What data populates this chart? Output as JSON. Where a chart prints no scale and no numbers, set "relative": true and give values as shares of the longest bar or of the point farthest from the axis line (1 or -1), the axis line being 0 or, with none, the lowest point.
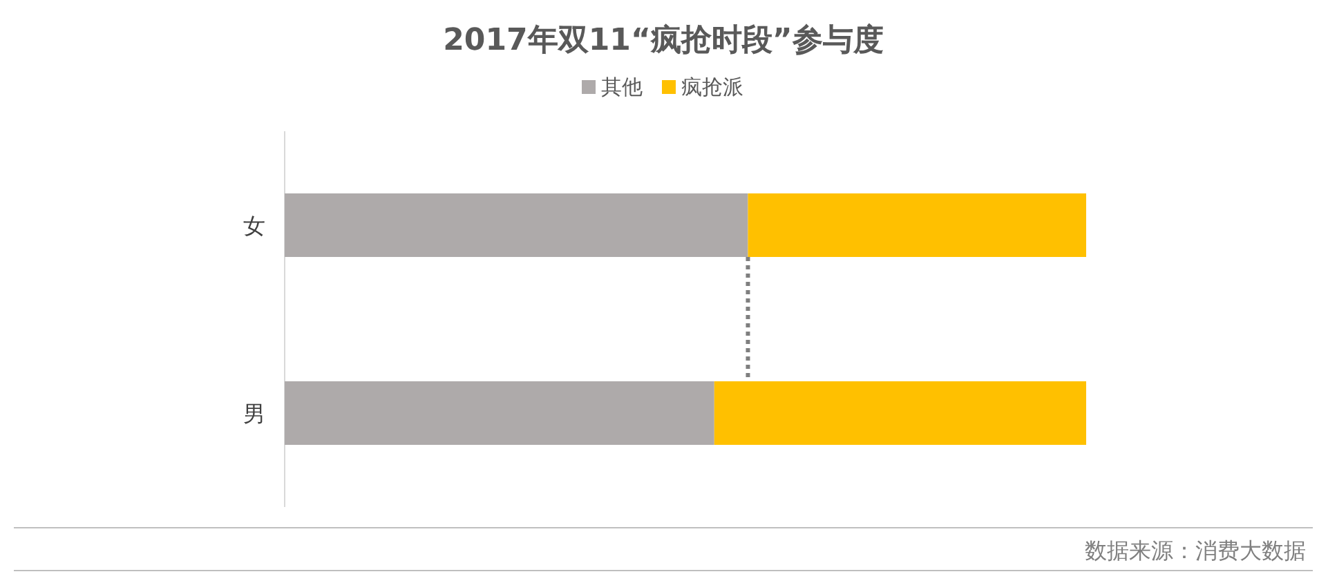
{
  "chart_data": {
    "type": "bar",
    "orientation": "horizontal",
    "stacked": true,
    "relative": true,
    "title": "2017年双11“疯抢时段”参与度",
    "categories": [
      "女",
      "男"
    ],
    "series": [
      {
        "name": "其他",
        "color": "#aeaaaa",
        "values": [
          0.578,
          0.536
        ]
      },
      {
        "name": "疯抢派",
        "color": "#ffc000",
        "values": [
          0.422,
          0.464
        ]
      }
    ],
    "legend": "top",
    "annotations": [
      "数据来源：消费大数据"
    ]
  }
}
